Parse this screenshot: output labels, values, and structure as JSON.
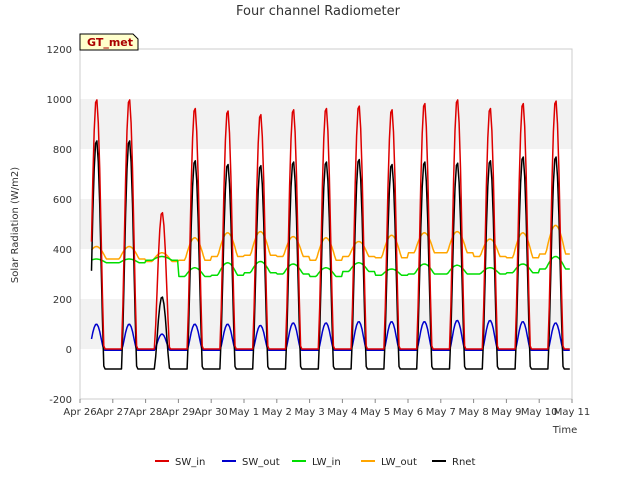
{
  "chart_data": {
    "type": "line",
    "title": "Four channel Radiometer",
    "xlabel": "Time",
    "ylabel": "Solar Radiation (W/m2)",
    "badge": "GT_met",
    "ylim": [
      -200,
      1200
    ],
    "xlim": [
      0,
      15
    ],
    "yticks": [
      -200,
      0,
      200,
      400,
      600,
      800,
      1000,
      1200
    ],
    "xticks": [
      {
        "x": 0,
        "label": "Apr 26"
      },
      {
        "x": 1,
        "label": "Apr 27"
      },
      {
        "x": 2,
        "label": "Apr 28"
      },
      {
        "x": 3,
        "label": "Apr 29"
      },
      {
        "x": 4,
        "label": "Apr 30"
      },
      {
        "x": 5,
        "label": "May 1"
      },
      {
        "x": 6,
        "label": "May 2"
      },
      {
        "x": 7,
        "label": "May 3"
      },
      {
        "x": 8,
        "label": "May 4"
      },
      {
        "x": 9,
        "label": "May 5"
      },
      {
        "x": 10,
        "label": "May 6"
      },
      {
        "x": 11,
        "label": "May 7"
      },
      {
        "x": 12,
        "label": "May 8"
      },
      {
        "x": 13,
        "label": "May 9"
      },
      {
        "x": 14,
        "label": "May 10"
      },
      {
        "x": 15,
        "label": "May 11"
      }
    ],
    "x_start": 0.35,
    "x_end": 14.95,
    "days": [
      1,
      2,
      3,
      4,
      5,
      6,
      7,
      8,
      9,
      10,
      11,
      12,
      13,
      14
    ],
    "series": [
      {
        "name": "SW_in",
        "color": "#dd0000",
        "daily_peak": [
          1005,
          550,
          970,
          960,
          945,
          965,
          970,
          980,
          965,
          990,
          1005,
          970,
          990,
          1000
        ],
        "night": 0
      },
      {
        "name": "SW_out",
        "color": "#0000cc",
        "daily_peak": [
          100,
          60,
          100,
          100,
          95,
          105,
          105,
          110,
          110,
          110,
          115,
          115,
          110,
          105
        ],
        "night": -5
      },
      {
        "name": "LW_in",
        "color": "#00dd00",
        "daily_day": [
          360,
          370,
          325,
          345,
          350,
          340,
          325,
          345,
          320,
          340,
          335,
          325,
          340,
          370
        ],
        "daily_night": [
          345,
          355,
          290,
          295,
          305,
          300,
          290,
          310,
          295,
          300,
          300,
          300,
          305,
          320
        ]
      },
      {
        "name": "LW_out",
        "color": "#ffa500",
        "daily_day": [
          410,
          385,
          445,
          465,
          470,
          450,
          445,
          430,
          455,
          465,
          470,
          440,
          465,
          495
        ],
        "daily_night": [
          360,
          350,
          355,
          370,
          375,
          370,
          355,
          370,
          365,
          385,
          385,
          370,
          365,
          380
        ]
      },
      {
        "name": "Rnet",
        "color": "#000000",
        "daily_peak": [
          840,
          210,
          760,
          745,
          740,
          755,
          755,
          765,
          745,
          755,
          750,
          760,
          775,
          775
        ],
        "night": -80
      }
    ]
  }
}
